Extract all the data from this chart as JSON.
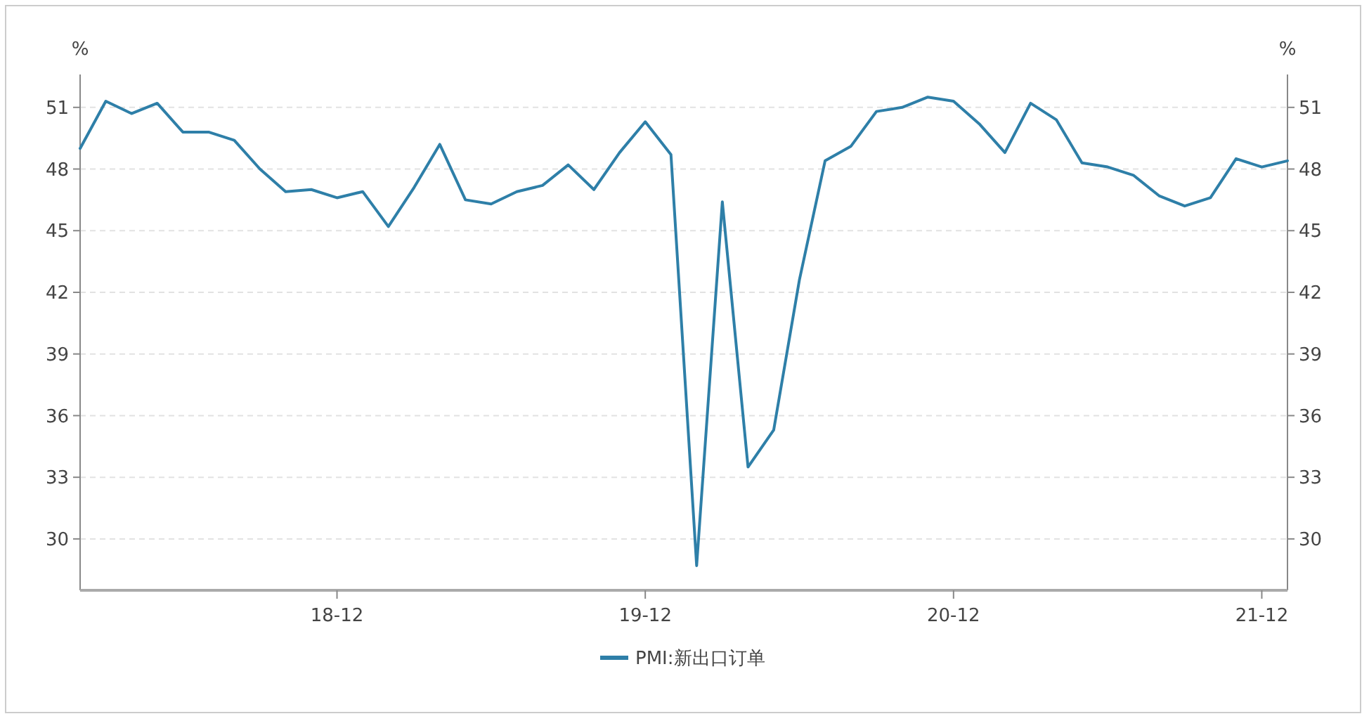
{
  "chart_data": {
    "type": "line",
    "ylabel": "%",
    "y2label": "%",
    "categories": [
      null,
      null,
      null,
      null,
      null,
      null,
      null,
      null,
      null,
      null,
      "18-12",
      null,
      null,
      null,
      null,
      null,
      null,
      null,
      null,
      null,
      null,
      null,
      "19-12",
      null,
      null,
      null,
      null,
      null,
      null,
      null,
      null,
      null,
      null,
      null,
      "20-12",
      null,
      null,
      null,
      null,
      null,
      null,
      null,
      null,
      null,
      null,
      null,
      "21-12",
      null
    ],
    "series": [
      {
        "name": "PMI:新出口订单",
        "color": "#2e7fa8",
        "values": [
          49.0,
          51.3,
          50.7,
          51.2,
          49.8,
          49.8,
          49.4,
          48.0,
          46.9,
          47.0,
          46.6,
          46.9,
          45.2,
          47.1,
          49.2,
          46.5,
          46.3,
          46.9,
          47.2,
          48.2,
          47.0,
          48.8,
          50.3,
          48.7,
          28.7,
          46.4,
          33.5,
          35.3,
          42.6,
          48.4,
          49.1,
          50.8,
          51.0,
          51.5,
          51.3,
          50.2,
          48.8,
          51.2,
          50.4,
          48.3,
          48.1,
          47.7,
          46.7,
          46.2,
          46.6,
          48.5,
          48.1,
          48.4
        ]
      }
    ],
    "ylim": [
      27.5,
      52.6
    ],
    "yticks": [
      30,
      33,
      36,
      39,
      42,
      45,
      48,
      51
    ],
    "y2lim": [
      27.5,
      52.6
    ],
    "y2ticks": [
      30,
      33,
      36,
      39,
      42,
      45,
      48,
      51
    ],
    "grid": "y",
    "legend": "bottom",
    "line_style": "solid",
    "marker": "none"
  }
}
